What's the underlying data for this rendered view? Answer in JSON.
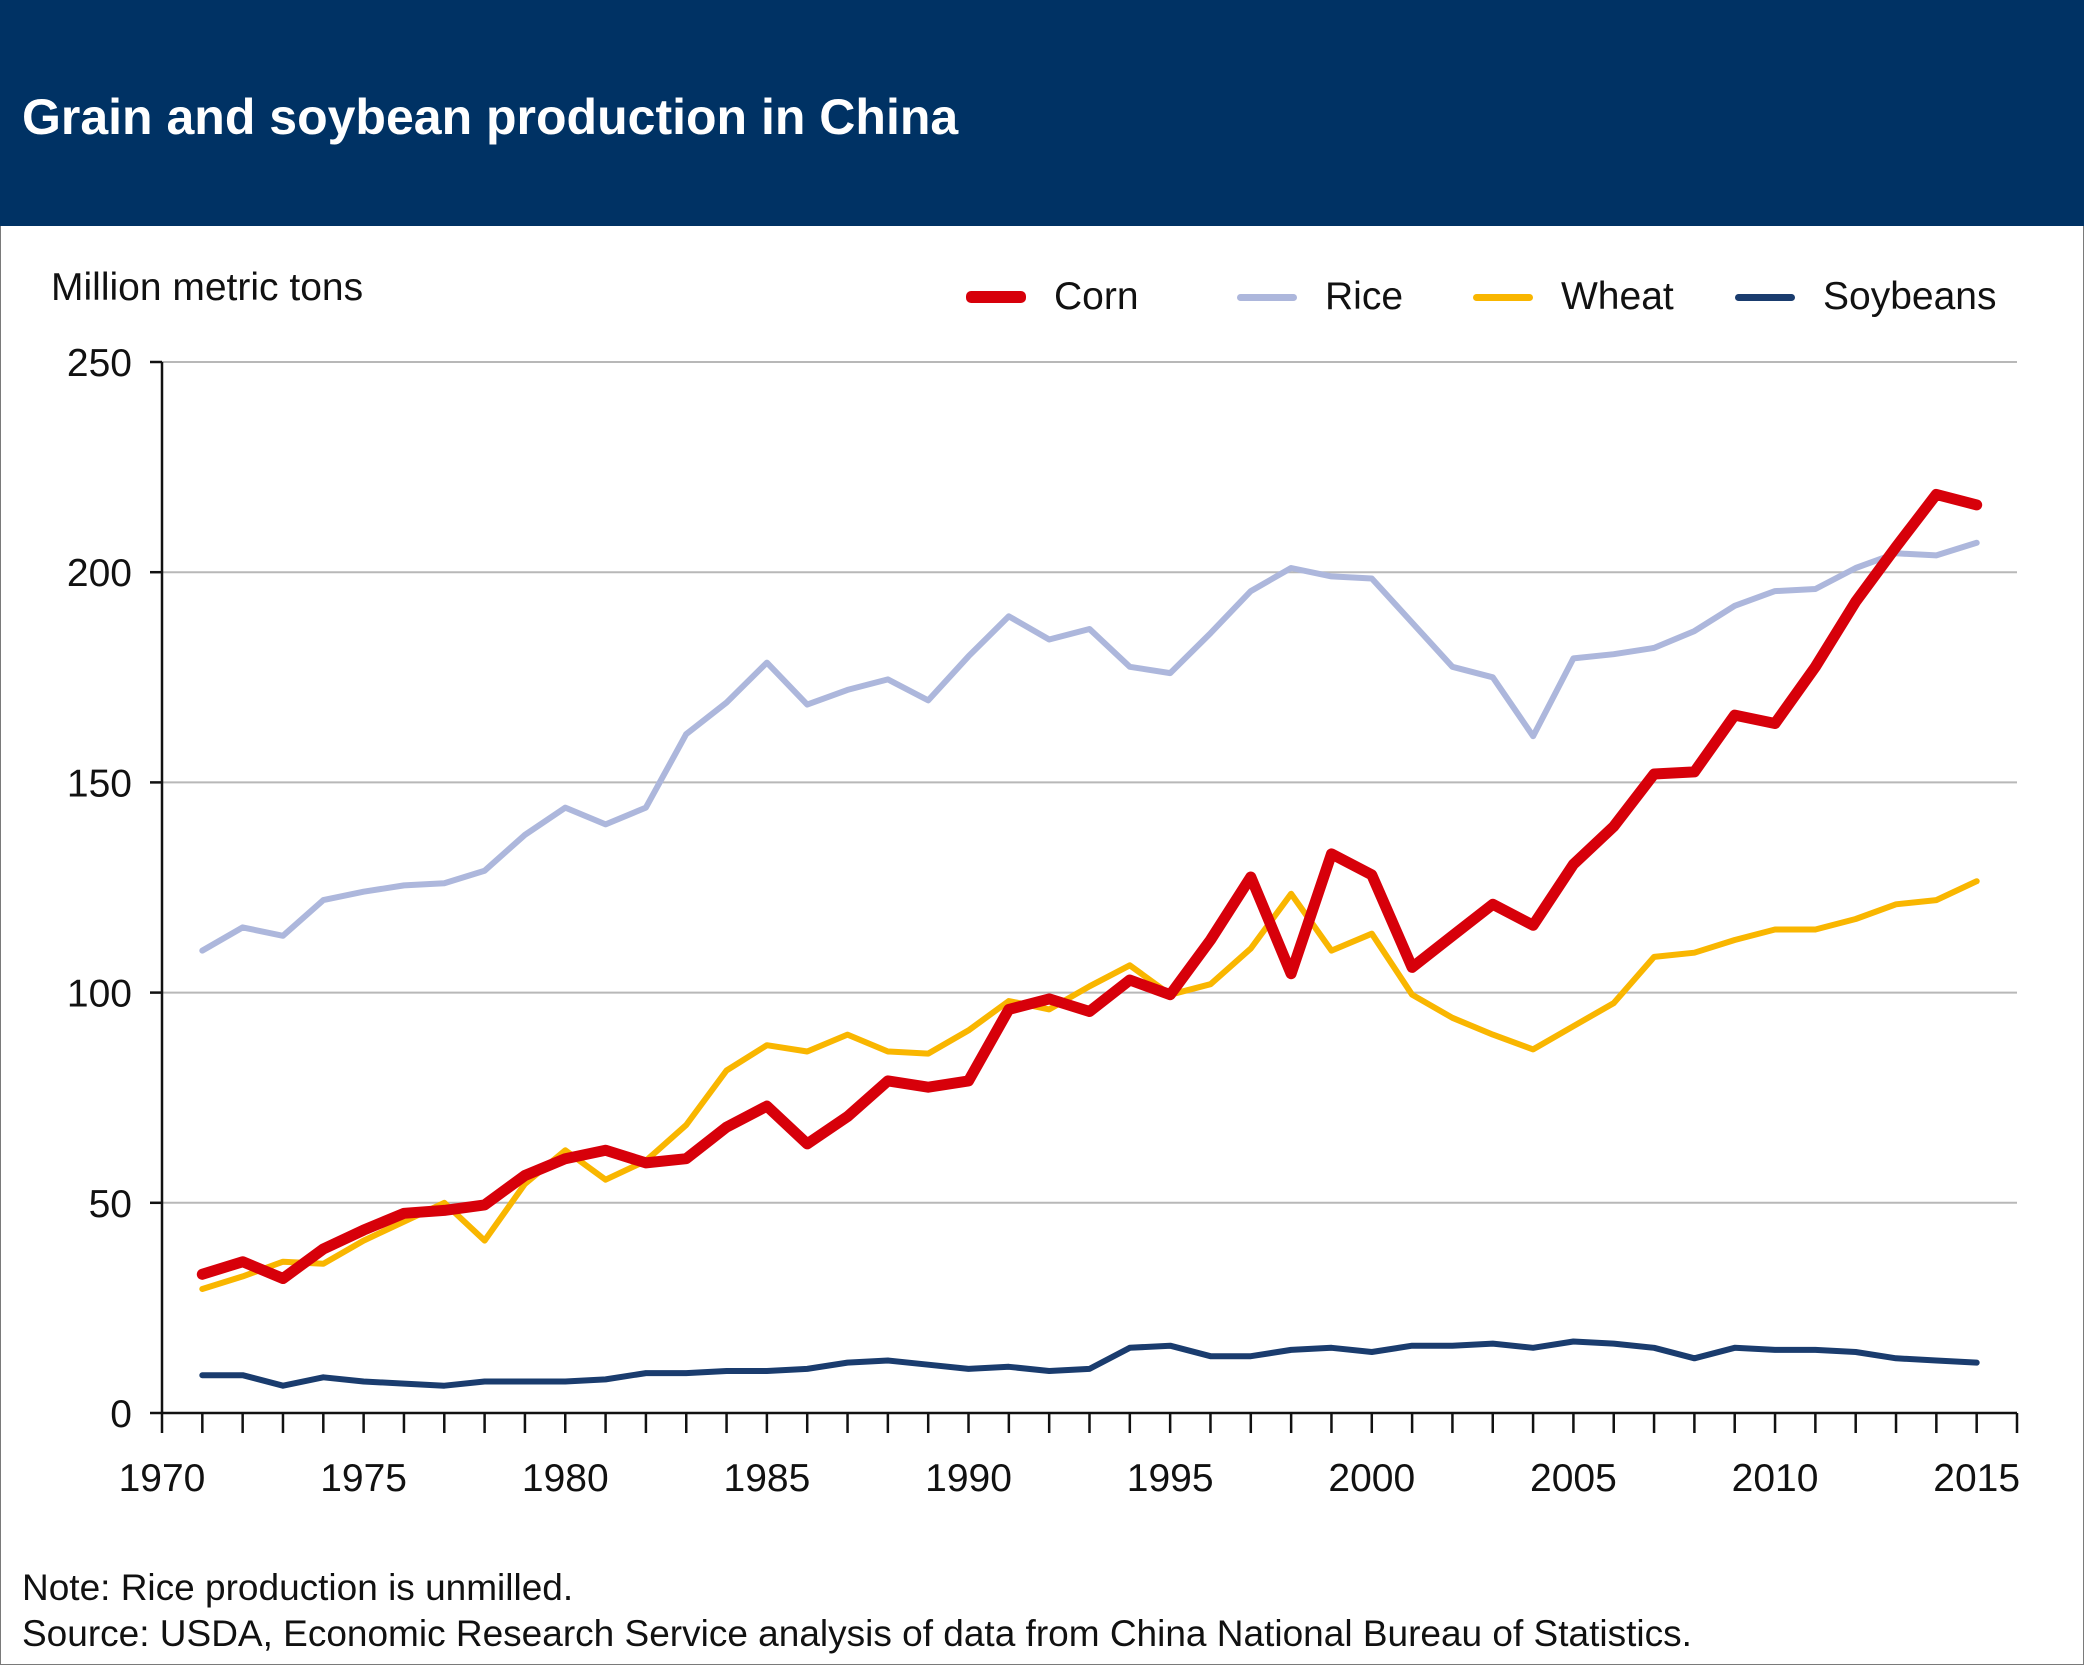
{
  "title": "Grain and soybean production in China",
  "note": "Note: Rice production is unmilled.",
  "source": "Source: USDA, Economic Research Service analysis of data from China National Bureau of Statistics.",
  "chart_data": {
    "type": "line",
    "title": "Grain and soybean production in China",
    "ylabel": "Million metric tons",
    "xlabel": "",
    "xlim": [
      1970,
      2016
    ],
    "ylim": [
      0,
      250
    ],
    "xticks": [
      "1970",
      "1975",
      "1980",
      "1985",
      "1990",
      "1995",
      "2000",
      "2005",
      "2010",
      "2015"
    ],
    "yticks": [
      "0",
      "50",
      "100",
      "150",
      "200",
      "250"
    ],
    "grid": "horizontal",
    "legend_position": "top-right",
    "x": [
      1971,
      1972,
      1973,
      1974,
      1975,
      1976,
      1977,
      1978,
      1979,
      1980,
      1981,
      1982,
      1983,
      1984,
      1985,
      1986,
      1987,
      1988,
      1989,
      1990,
      1991,
      1992,
      1993,
      1994,
      1995,
      1996,
      1997,
      1998,
      1999,
      2000,
      2001,
      2002,
      2003,
      2004,
      2005,
      2006,
      2007,
      2008,
      2009,
      2010,
      2011,
      2012,
      2013,
      2014,
      2015
    ],
    "series": [
      {
        "name": "Corn",
        "color": "#d7000a",
        "values": [
          33,
          36,
          32,
          39,
          43.5,
          47.5,
          48.2,
          49.5,
          56.5,
          60.5,
          62.5,
          59.5,
          60.5,
          68,
          73,
          64,
          70.5,
          79,
          77.5,
          79,
          96,
          98.5,
          95.5,
          103,
          99.5,
          112.5,
          127.5,
          104.5,
          133,
          128,
          106,
          113.5,
          121,
          116,
          130.5,
          139.5,
          152,
          152.5,
          166,
          164,
          177.5,
          193,
          206,
          218.5,
          216
        ]
      },
      {
        "name": "Rice",
        "color": "#adb7dc",
        "values": [
          110,
          115.5,
          113.5,
          122,
          124,
          125.5,
          126,
          129,
          137.5,
          144,
          140,
          144,
          161.5,
          169,
          178.5,
          168.5,
          172,
          174.5,
          169.5,
          180,
          189.5,
          184,
          186.5,
          177.5,
          176,
          185.5,
          195.5,
          201,
          199,
          198.5,
          188,
          177.5,
          175,
          161,
          179.5,
          180.5,
          182,
          186,
          192,
          195.5,
          196,
          201,
          204.5,
          204,
          207
        ]
      },
      {
        "name": "Wheat",
        "color": "#f9b600",
        "values": [
          29.5,
          32.5,
          36,
          35.5,
          41,
          45.5,
          50,
          41,
          54.5,
          62.5,
          55.5,
          60,
          68.5,
          81.5,
          87.5,
          86,
          90,
          86,
          85.5,
          91,
          98,
          96,
          101.5,
          106.5,
          99.5,
          102,
          110.5,
          123.5,
          110,
          114,
          99.5,
          94,
          90,
          86.5,
          92,
          97.5,
          108.5,
          109.5,
          112.5,
          115,
          115,
          117.5,
          121,
          122,
          126.5
        ]
      },
      {
        "name": "Soybeans",
        "color": "#1a3c6e",
        "values": [
          9,
          9,
          6.5,
          8.5,
          7.5,
          7,
          6.5,
          7.5,
          7.5,
          7.5,
          8,
          9.5,
          9.5,
          10,
          10,
          10.5,
          12,
          12.5,
          11.5,
          10.5,
          11,
          10,
          10.5,
          15.5,
          16,
          13.5,
          13.5,
          15,
          15.5,
          14.5,
          16,
          16,
          16.5,
          15.5,
          17,
          16.5,
          15.5,
          13,
          15.5,
          15,
          15,
          14.5,
          13,
          12.5,
          12
        ]
      }
    ]
  }
}
